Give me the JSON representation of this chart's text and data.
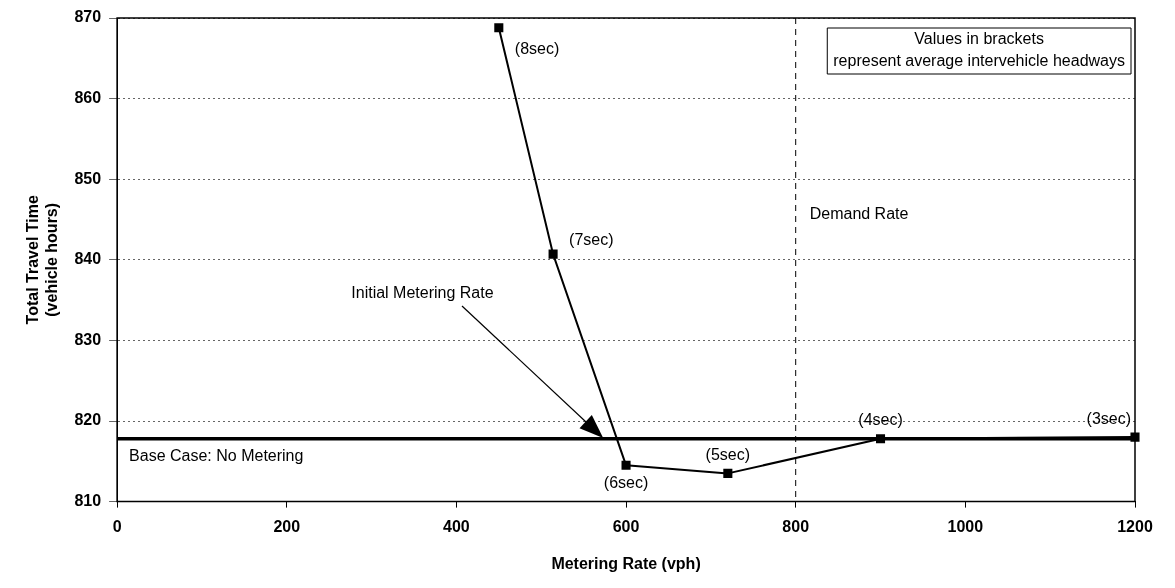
{
  "chart_data": {
    "type": "line",
    "xlabel": "Metering Rate (vph)",
    "ylabel": "Total Travel Time\n(vehicle hours)",
    "x": [
      450,
      514,
      600,
      720,
      900,
      1200
    ],
    "values": [
      868.8,
      840.7,
      814.5,
      813.5,
      817.8,
      818.0
    ],
    "color": "#000000",
    "marker": "square",
    "line_style": "solid",
    "xlim": [
      0,
      1200
    ],
    "xticks": [
      0,
      200,
      400,
      600,
      800,
      1000,
      1200
    ],
    "ylim": [
      810,
      870
    ],
    "yticks": [
      810,
      820,
      830,
      840,
      850,
      860,
      870
    ],
    "grid": "y",
    "legend": false,
    "ref_lines": [
      {
        "axis": "y",
        "value": 817.8,
        "label": "Base Case: No Metering",
        "color": "#000000",
        "line_style": "solid"
      },
      {
        "axis": "x",
        "value": 800,
        "label": "Demand Rate",
        "color": "#000000",
        "line_style": "dashed"
      }
    ],
    "annotations": [
      {
        "text": "(8sec)",
        "x": 450,
        "y": 868.8
      },
      {
        "text": "(7sec)",
        "x": 514,
        "y": 840.7
      },
      {
        "text": "(6sec)",
        "x": 600,
        "y": 814.5
      },
      {
        "text": "(5sec)",
        "x": 720,
        "y": 813.5
      },
      {
        "text": "(4sec)",
        "x": 900,
        "y": 817.8
      },
      {
        "text": "(3sec)",
        "x": 1200,
        "y": 818.0
      },
      "Initial Metering Rate",
      "Values in brackets represent average intervehicle headways"
    ]
  }
}
